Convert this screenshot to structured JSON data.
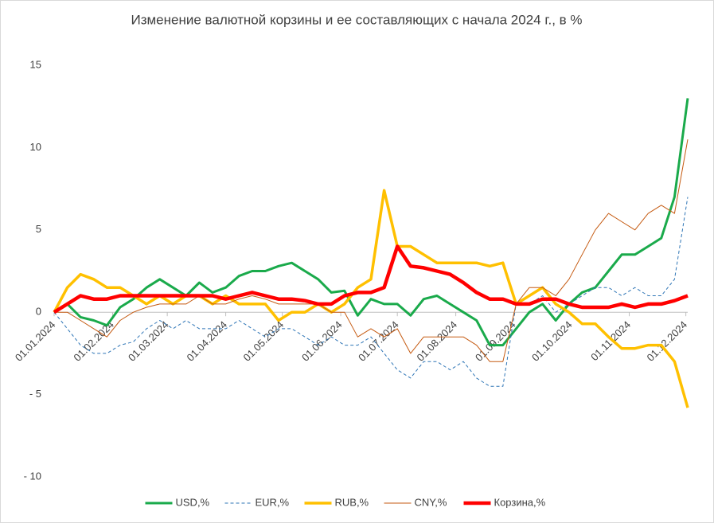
{
  "chart_data": {
    "type": "line",
    "title": "Изменение валютной корзины и ее составляющих с начала 2024 г., в %",
    "x": [
      "01.01.2024",
      "08.01.2024",
      "15.01.2024",
      "22.01.2024",
      "29.01.2024",
      "05.02.2024",
      "12.02.2024",
      "19.02.2024",
      "26.02.2024",
      "04.03.2024",
      "11.03.2024",
      "18.03.2024",
      "25.03.2024",
      "01.04.2024",
      "08.04.2024",
      "15.04.2024",
      "22.04.2024",
      "29.04.2024",
      "06.05.2024",
      "13.05.2024",
      "20.05.2024",
      "27.05.2024",
      "03.06.2024",
      "10.06.2024",
      "17.06.2024",
      "24.06.2024",
      "01.07.2024",
      "08.07.2024",
      "15.07.2024",
      "22.07.2024",
      "29.07.2024",
      "05.08.2024",
      "12.08.2024",
      "19.08.2024",
      "26.08.2024",
      "02.09.2024",
      "09.09.2024",
      "16.09.2024",
      "23.09.2024",
      "30.09.2024",
      "07.10.2024",
      "14.10.2024",
      "21.10.2024",
      "28.10.2024",
      "04.11.2024",
      "11.11.2024",
      "18.11.2024",
      "25.11.2024",
      "02.12.2024"
    ],
    "xlim": [
      "01.01.2024",
      "02.12.2024"
    ],
    "xticks": [
      "01.01.2024",
      "01.02.2024",
      "01.03.2024",
      "01.04.2024",
      "01.05.2024",
      "01.06.2024",
      "01.07.2024",
      "01.08.2024",
      "01.09.2024",
      "01.10.2024",
      "01.11.2024",
      "01.12.2024"
    ],
    "ylim": [
      -10,
      15
    ],
    "yticks": [
      {
        "value": -10,
        "label": "- 10"
      },
      {
        "value": -5,
        "label": "- 5"
      },
      0,
      5,
      10,
      15
    ],
    "grid": false,
    "legend": "bottom",
    "series": [
      {
        "name": "USD,%",
        "color": "#1aaa4b",
        "line_width": 3,
        "dashed": false,
        "values": [
          0,
          0.5,
          -0.3,
          -0.5,
          -0.8,
          0.3,
          0.8,
          1.5,
          2.0,
          1.5,
          1.0,
          1.8,
          1.2,
          1.5,
          2.2,
          2.5,
          2.5,
          2.8,
          3.0,
          2.5,
          2.0,
          1.2,
          1.3,
          -0.2,
          0.8,
          0.5,
          0.5,
          -0.2,
          0.8,
          1.0,
          0.5,
          0.0,
          -0.5,
          -2.0,
          -2.0,
          -1.0,
          0.0,
          0.5,
          -0.5,
          0.5,
          1.2,
          1.5,
          2.5,
          3.5,
          3.5,
          4.0,
          4.5,
          7.0,
          13.0
        ]
      },
      {
        "name": "EUR,%",
        "color": "#2e75b6",
        "line_width": 1,
        "dashed": true,
        "values": [
          0,
          -1.0,
          -2.0,
          -2.5,
          -2.5,
          -2.0,
          -1.8,
          -1.0,
          -0.5,
          -1.0,
          -0.5,
          -1.0,
          -1.0,
          -1.0,
          -0.5,
          -1.0,
          -1.5,
          -1.0,
          -1.0,
          -1.5,
          -2.0,
          -1.5,
          -2.0,
          -2.0,
          -1.5,
          -2.5,
          -3.5,
          -4.0,
          -3.0,
          -3.0,
          -3.5,
          -3.0,
          -4.0,
          -4.5,
          -4.5,
          0.5,
          0.5,
          1.0,
          0.0,
          0.5,
          1.0,
          1.5,
          1.5,
          1.0,
          1.5,
          1.0,
          1.0,
          2.0,
          7.0
        ]
      },
      {
        "name": "RUB,%",
        "color": "#ffc000",
        "line_width": 3.5,
        "dashed": false,
        "values": [
          0,
          1.5,
          2.3,
          2.0,
          1.5,
          1.5,
          1.0,
          0.5,
          1.0,
          0.5,
          1.0,
          1.0,
          0.5,
          1.0,
          0.5,
          0.5,
          0.5,
          -0.5,
          0.0,
          0.0,
          0.5,
          0.0,
          0.5,
          1.5,
          2.0,
          7.4,
          4.0,
          4.0,
          3.5,
          3.0,
          3.0,
          3.0,
          3.0,
          2.8,
          3.0,
          0.5,
          1.0,
          1.5,
          0.5,
          0.0,
          -0.7,
          -0.7,
          -1.5,
          -2.2,
          -2.2,
          -2.0,
          -2.0,
          -3.0,
          -5.8
        ]
      },
      {
        "name": "CNY,%",
        "color": "#c55a11",
        "line_width": 1,
        "dashed": false,
        "values": [
          0,
          0.0,
          -0.5,
          -1.0,
          -1.5,
          -0.5,
          0.0,
          0.3,
          0.5,
          0.5,
          0.5,
          1.0,
          0.5,
          0.5,
          0.8,
          1.0,
          0.8,
          0.5,
          0.5,
          0.5,
          0.5,
          0.0,
          0.0,
          -1.5,
          -1.0,
          -1.5,
          -1.0,
          -2.5,
          -1.5,
          -1.5,
          -1.5,
          -1.5,
          -2.0,
          -3.0,
          -3.0,
          0.5,
          1.5,
          1.5,
          1.0,
          2.0,
          3.5,
          5.0,
          6.0,
          5.5,
          5.0,
          6.0,
          6.5,
          6.0,
          10.5
        ]
      },
      {
        "name": "Корзина,%",
        "color": "#ff0000",
        "line_width": 4.5,
        "dashed": false,
        "values": [
          0,
          0.5,
          1.0,
          0.8,
          0.8,
          1.0,
          1.0,
          1.0,
          1.0,
          1.0,
          1.0,
          1.0,
          1.0,
          0.8,
          1.0,
          1.2,
          1.0,
          0.8,
          0.8,
          0.7,
          0.5,
          0.5,
          1.0,
          1.2,
          1.2,
          1.5,
          4.0,
          2.8,
          2.7,
          2.5,
          2.3,
          1.8,
          1.2,
          0.8,
          0.8,
          0.5,
          0.5,
          0.8,
          0.8,
          0.5,
          0.3,
          0.3,
          0.3,
          0.5,
          0.3,
          0.5,
          0.5,
          0.7,
          1.0
        ]
      }
    ]
  }
}
